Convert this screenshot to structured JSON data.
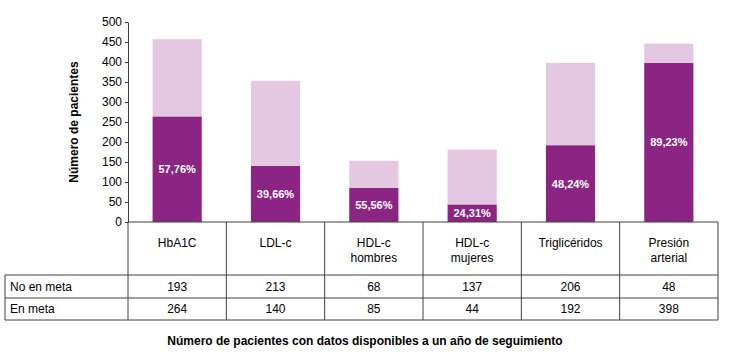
{
  "chart_data": {
    "type": "bar",
    "stacked": true,
    "grid": false,
    "y_label": "Número de pacientes",
    "x_label": "Número de pacientes con datos disponibles a un año de seguimiento",
    "categories": [
      "HbA1C",
      "LDL-c",
      "HDL-c hombres",
      "HDL-c mujeres",
      "Triglicéridos",
      "Presión arterial"
    ],
    "series": [
      {
        "name": "No en meta",
        "color": "#e4c8e2",
        "values": [
          193,
          213,
          68,
          137,
          206,
          48
        ]
      },
      {
        "name": "En meta",
        "color": "#8c2483",
        "values": [
          264,
          140,
          85,
          44,
          192,
          398
        ],
        "percentage_labels": [
          "57,76%",
          "39,66%",
          "55,56%",
          "24,31%",
          "48,24%",
          "89,23%"
        ]
      }
    ],
    "ylim": [
      0,
      500
    ],
    "yticks": [
      0,
      50,
      100,
      150,
      200,
      250,
      300,
      350,
      400,
      450,
      500
    ]
  }
}
